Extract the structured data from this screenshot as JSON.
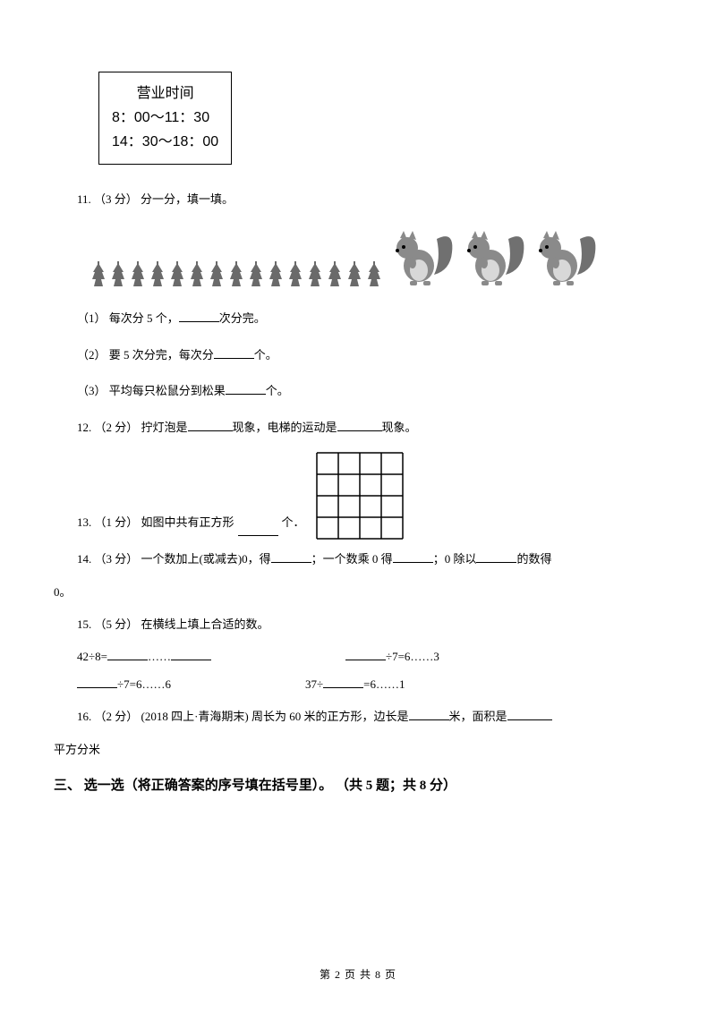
{
  "hoursBox": {
    "title": "营业时间",
    "line1": "8：00～11：30",
    "line2": "14：30～18：00"
  },
  "q11": {
    "stem": "11. （3 分） 分一分，填一填。",
    "s1_pre": "（1） 每次分 5 个，",
    "s1_post": "次分完。",
    "s2_pre": "（2） 要 5 次分完，每次分",
    "s2_post": "个。",
    "s3_pre": "（3） 平均每只松鼠分到松果",
    "s3_post": "个。"
  },
  "q12": {
    "pre": "12. （2 分） 拧灯泡是",
    "mid": "现象，电梯的运动是",
    "post": "现象。"
  },
  "q13": {
    "pre": "13. （1 分） 如图中共有正方形",
    "post": " 个．"
  },
  "q14": {
    "pre": "14. （3 分） 一个数加上(或减去)0，得",
    "mid1": "；一个数乘 0 得",
    "mid2": "；0 除以",
    "post1": "的数得",
    "line2": "0。"
  },
  "q15": {
    "stem": "15. （5 分） 在横线上填上合适的数。",
    "r1a_pre": "42÷8=",
    "r1a_mid": "……",
    "r1b_post": "÷7=6……3",
    "r2a_post": "÷7=6……6",
    "r2b_pre": "37÷",
    "r2b_post": "=6……1"
  },
  "q16": {
    "pre": "16. （2 分） (2018 四上·青海期末)  周长为 60 米的正方形，边长是",
    "mid": "米，面积是",
    "line2": "平方分米"
  },
  "section3": "三、 选一选（将正确答案的序号填在括号里）。 （共 5 题；共 8 分）",
  "footer": "第 2 页 共 8 页",
  "grid": {
    "size": 4,
    "cell": 24,
    "stroke": "#000000"
  },
  "colors": {
    "pinecone": "#6a6a6a",
    "squirrelBody": "#8a8a8a",
    "squirrelTail": "#707070"
  },
  "counts": {
    "pinecones": 15,
    "squirrels": 3
  }
}
